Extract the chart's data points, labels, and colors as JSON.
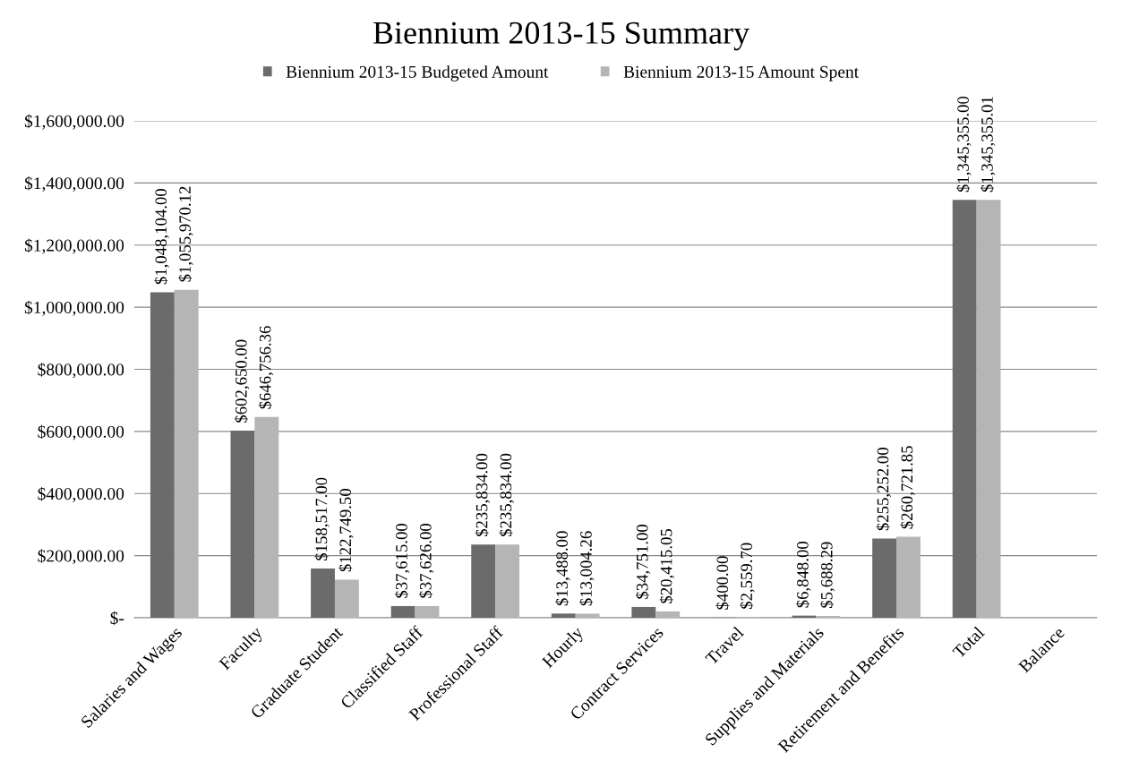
{
  "chart_data": {
    "type": "bar",
    "title": "Biennium 2013-15 Summary",
    "categories": [
      "Salaries and Wages",
      "Faculty",
      "Graduate Student",
      "Classified Staff",
      "Professional Staff",
      "Hourly",
      "Contract Services",
      "Travel",
      "Supplies and Materials",
      "Retirement and Benefits",
      "Total",
      "Balance"
    ],
    "series": [
      {
        "name": "Biennium 2013-15 Budgeted Amount",
        "color": "#6b6b6b",
        "values": [
          1048104.0,
          602650.0,
          158517.0,
          37615.0,
          235834.0,
          13488.0,
          34751.0,
          400.0,
          6848.0,
          255252.0,
          1345355.0,
          null
        ],
        "value_labels": [
          "$1,048,104.00",
          "$602,650.00",
          "$158,517.00",
          "$37,615.00",
          "$235,834.00",
          "$13,488.00",
          "$34,751.00",
          "$400.00",
          "$6,848.00",
          "$255,252.00",
          "$1,345,355.00",
          null
        ]
      },
      {
        "name": "Biennium 2013-15 Amount Spent",
        "color": "#b5b5b5",
        "values": [
          1055970.12,
          646756.36,
          122749.5,
          37626.0,
          235834.0,
          13004.26,
          20415.05,
          2559.7,
          5688.29,
          260721.85,
          1345355.01,
          null
        ],
        "value_labels": [
          "$1,055,970.12",
          "$646,756.36",
          "$122,749.50",
          "$37,626.00",
          "$235,834.00",
          "$13,004.26",
          "$20,415.05",
          "$2,559.70",
          "$5,688.29",
          "$260,721.85",
          "$1,345,355.01",
          null
        ]
      }
    ],
    "ylim": [
      0,
      1600000
    ],
    "yticks": [
      {
        "value": 0,
        "label": "$-"
      },
      {
        "value": 200000,
        "label": "$200,000.00"
      },
      {
        "value": 400000,
        "label": "$400,000.00"
      },
      {
        "value": 600000,
        "label": "$600,000.00"
      },
      {
        "value": 800000,
        "label": "$800,000.00"
      },
      {
        "value": 1000000,
        "label": "$1,000,000.00"
      },
      {
        "value": 1200000,
        "label": "$1,200,000.00"
      },
      {
        "value": 1400000,
        "label": "$1,400,000.00"
      },
      {
        "value": 1600000,
        "label": "$1,600,000.00"
      }
    ],
    "grid": "y",
    "legend": "top"
  }
}
